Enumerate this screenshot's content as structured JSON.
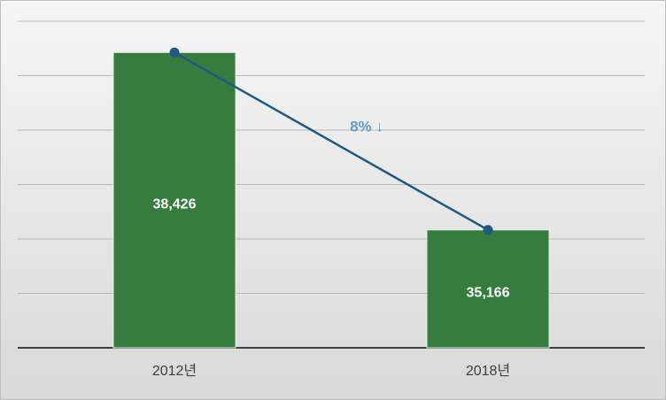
{
  "chart_data": {
    "type": "bar",
    "categories": [
      "2012년",
      "2018년"
    ],
    "values": [
      38426,
      35166
    ],
    "value_labels": [
      "38,426",
      "35,166"
    ],
    "color": "#367c3f",
    "line_color": "#1d5b85",
    "ylim": [
      33000,
      39000
    ],
    "yticks": [
      33000,
      34000,
      35000,
      36000,
      37000,
      38000,
      39000
    ],
    "grid": true,
    "annotation": "8% ↓",
    "annotation_color": "#5b9bd5"
  }
}
